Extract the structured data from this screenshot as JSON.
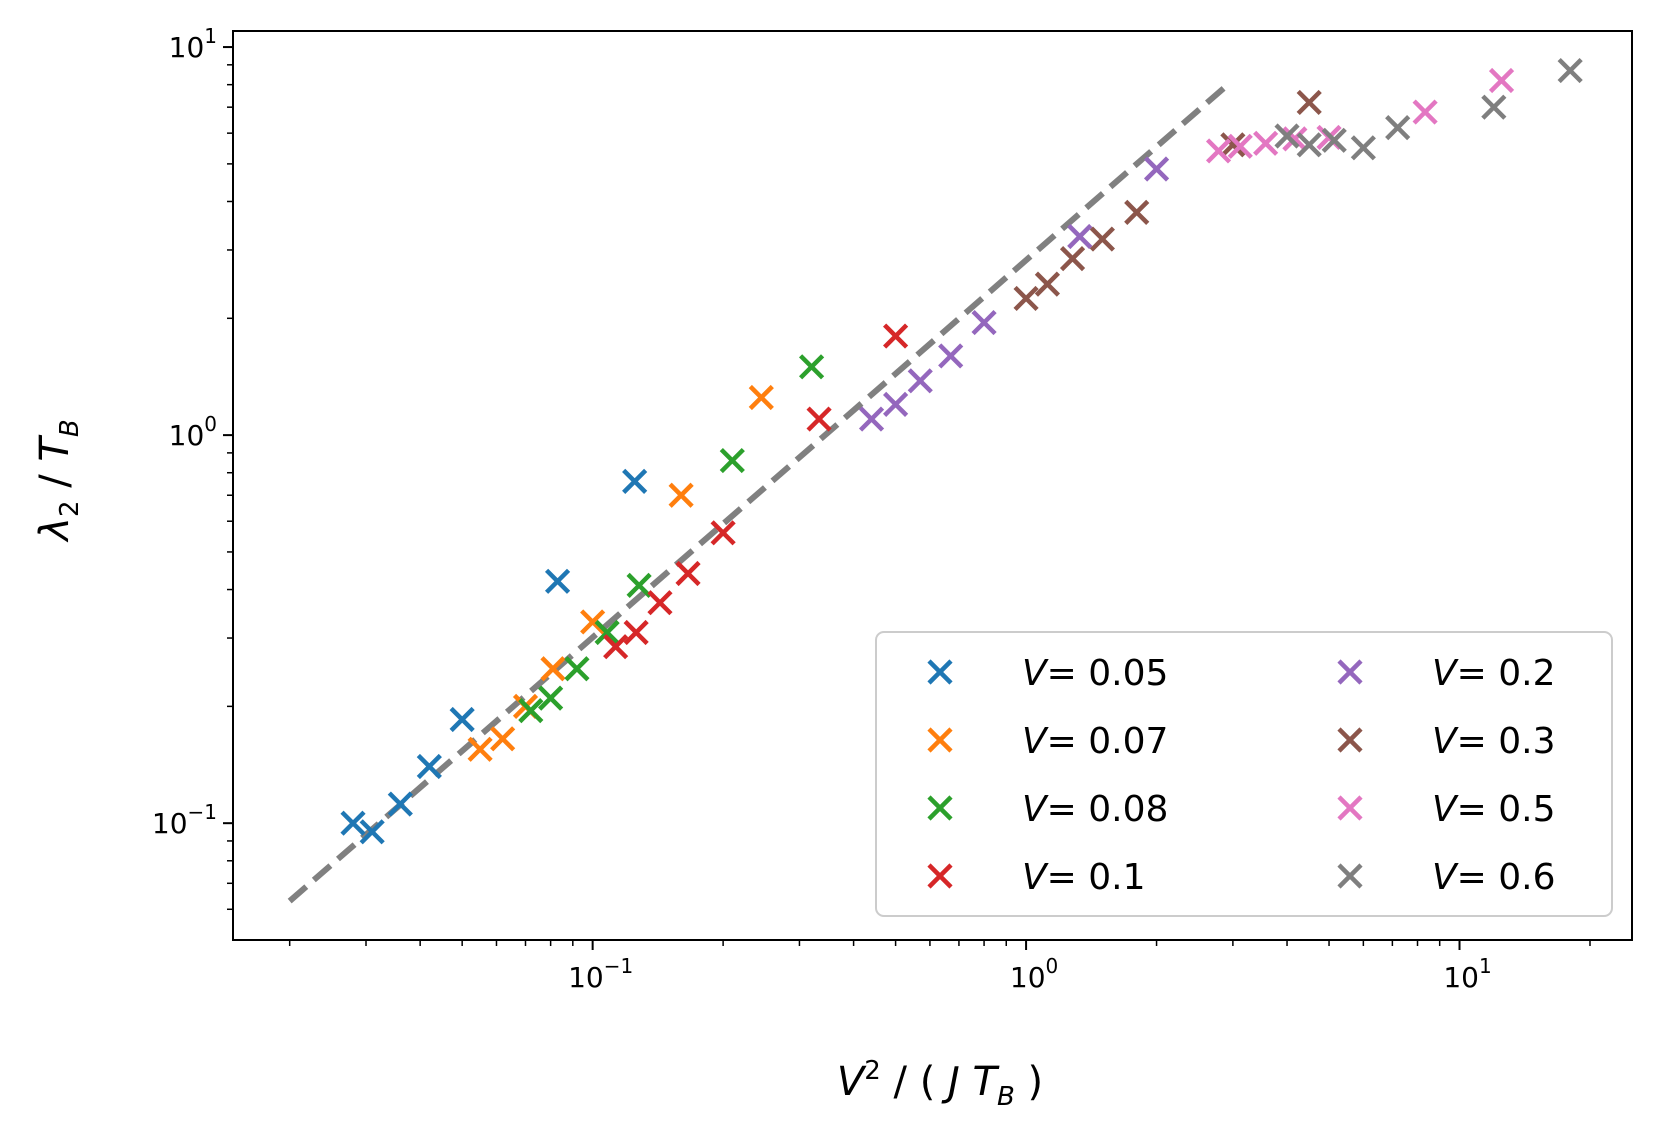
{
  "chart_data": {
    "type": "scatter",
    "xscale": "log",
    "yscale": "log",
    "xlim": [
      0.0148,
      25
    ],
    "ylim": [
      0.05,
      11
    ],
    "x_ticks": [
      {
        "value": 0.1,
        "base": "10",
        "exp": "−1"
      },
      {
        "value": 1,
        "base": "10",
        "exp": "0"
      },
      {
        "value": 10,
        "base": "10",
        "exp": "1"
      }
    ],
    "y_ticks": [
      {
        "value": 0.1,
        "base": "10",
        "exp": "−1"
      },
      {
        "value": 1,
        "base": "10",
        "exp": "0"
      },
      {
        "value": 10,
        "base": "10",
        "exp": "1"
      }
    ],
    "xlabel": {
      "V": "V",
      "sup": "2",
      "rest1": " / ( ",
      "J": "J",
      "T": "T",
      "sub": "B",
      "rest2": " )"
    },
    "ylabel": {
      "lambda": "λ",
      "sub2": "2",
      "slash": " / ",
      "T": "T",
      "subB": "B"
    },
    "legend": {
      "placement": "lower-right",
      "columns": 2
    },
    "grid": false,
    "fit_line": {
      "style": "dashed",
      "color": "#808080",
      "x": [
        0.02,
        2.92
      ],
      "y": [
        0.063,
        8.0
      ]
    },
    "series": [
      {
        "name": "V = 0.05",
        "name_var": "V",
        "name_value": "= 0.05",
        "color": "#1f77b4",
        "points": [
          [
            0.028,
            0.1
          ],
          [
            0.031,
            0.095
          ],
          [
            0.036,
            0.112
          ],
          [
            0.042,
            0.14
          ],
          [
            0.05,
            0.185
          ],
          [
            0.083,
            0.42
          ],
          [
            0.125,
            0.76
          ]
        ]
      },
      {
        "name": "V = 0.07",
        "name_var": "V",
        "name_value": "= 0.07",
        "color": "#ff7f0e",
        "points": [
          [
            0.055,
            0.155
          ],
          [
            0.062,
            0.165
          ],
          [
            0.07,
            0.2
          ],
          [
            0.081,
            0.25
          ],
          [
            0.1,
            0.33
          ],
          [
            0.16,
            0.7
          ],
          [
            0.245,
            1.25
          ]
        ]
      },
      {
        "name": "V = 0.08",
        "name_var": "V",
        "name_value": "= 0.08",
        "color": "#2ca02c",
        "points": [
          [
            0.072,
            0.195
          ],
          [
            0.08,
            0.21
          ],
          [
            0.092,
            0.25
          ],
          [
            0.108,
            0.31
          ],
          [
            0.128,
            0.41
          ],
          [
            0.21,
            0.86
          ],
          [
            0.32,
            1.5
          ]
        ]
      },
      {
        "name": "V = 0.1",
        "name_var": "V",
        "name_value": "= 0.1",
        "color": "#d62728",
        "points": [
          [
            0.113,
            0.285
          ],
          [
            0.126,
            0.31
          ],
          [
            0.143,
            0.37
          ],
          [
            0.166,
            0.44
          ],
          [
            0.2,
            0.56
          ],
          [
            0.333,
            1.1
          ],
          [
            0.5,
            1.8
          ]
        ]
      },
      {
        "name": "V = 0.2",
        "name_var": "V",
        "name_value": "= 0.2",
        "color": "#9467bd",
        "points": [
          [
            0.44,
            1.1
          ],
          [
            0.5,
            1.2
          ],
          [
            0.57,
            1.38
          ],
          [
            0.67,
            1.6
          ],
          [
            0.8,
            1.95
          ],
          [
            1.33,
            3.25
          ],
          [
            2.0,
            4.85
          ]
        ]
      },
      {
        "name": "V = 0.3",
        "name_var": "V",
        "name_value": "= 0.3",
        "color": "#8c564b",
        "points": [
          [
            1.0,
            2.25
          ],
          [
            1.12,
            2.45
          ],
          [
            1.28,
            2.85
          ],
          [
            1.5,
            3.2
          ],
          [
            1.8,
            3.75
          ],
          [
            3.0,
            5.6
          ],
          [
            4.5,
            7.2
          ]
        ]
      },
      {
        "name": "V = 0.5",
        "name_var": "V",
        "name_value": "= 0.5",
        "color": "#e377c2",
        "points": [
          [
            2.78,
            5.4
          ],
          [
            3.12,
            5.55
          ],
          [
            3.57,
            5.65
          ],
          [
            4.17,
            5.8
          ],
          [
            5.0,
            5.85
          ],
          [
            8.33,
            6.8
          ],
          [
            12.5,
            8.2
          ]
        ]
      },
      {
        "name": "V = 0.6",
        "name_var": "V",
        "name_value": "= 0.6",
        "color": "#7f7f7f",
        "points": [
          [
            4.0,
            5.9
          ],
          [
            4.5,
            5.6
          ],
          [
            5.14,
            5.75
          ],
          [
            6.0,
            5.5
          ],
          [
            7.2,
            6.2
          ],
          [
            12.0,
            7.0
          ],
          [
            18.0,
            8.7
          ]
        ]
      }
    ]
  }
}
